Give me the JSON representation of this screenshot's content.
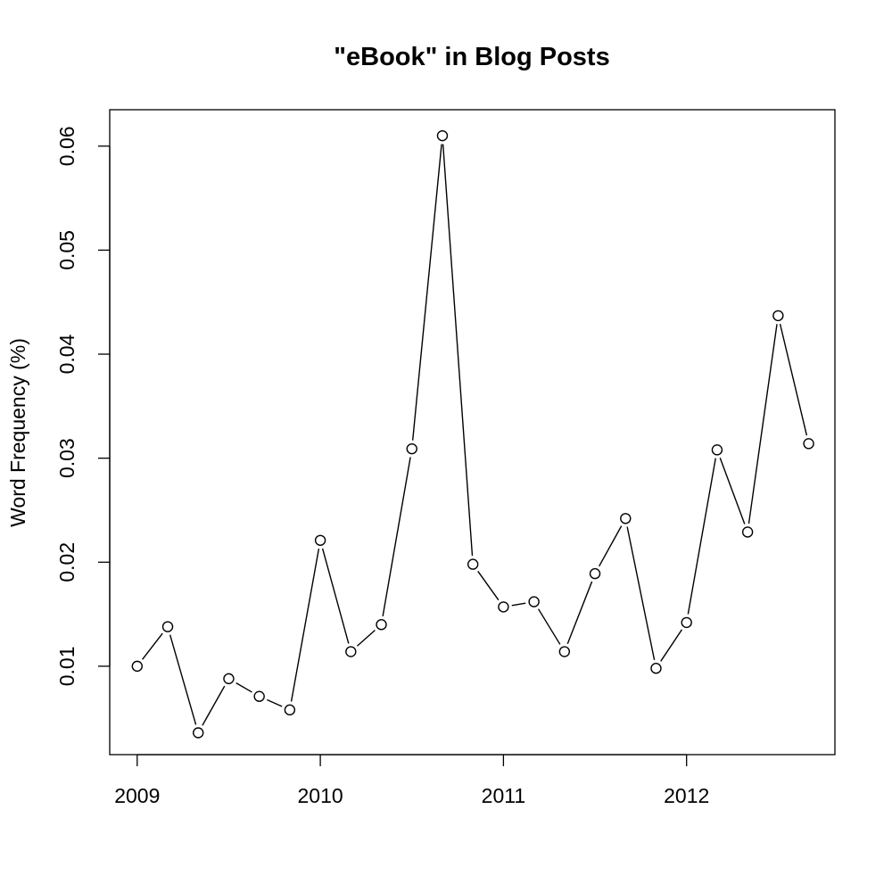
{
  "chart_data": {
    "type": "line",
    "title": "\"eBook\" in Blog Posts",
    "xlabel": "",
    "ylabel": "Word Frequency (%)",
    "xlim": [
      2008.85,
      2012.81
    ],
    "ylim": [
      0.0015,
      0.0635
    ],
    "x_ticks": [
      2009,
      2010,
      2011,
      2012
    ],
    "x_tick_labels": [
      "2009",
      "2010",
      "2011",
      "2012"
    ],
    "y_ticks": [
      0.01,
      0.02,
      0.03,
      0.04,
      0.05,
      0.06
    ],
    "y_tick_labels": [
      "0.01",
      "0.02",
      "0.03",
      "0.04",
      "0.05",
      "0.06"
    ],
    "grid": false,
    "series": [
      {
        "x": [
          2009.0,
          2009.1667,
          2009.3333,
          2009.5,
          2009.6667,
          2009.8333,
          2010.0,
          2010.1667,
          2010.3333,
          2010.5,
          2010.6667,
          2010.8333,
          2011.0,
          2011.1667,
          2011.3333,
          2011.5,
          2011.6667,
          2011.8333,
          2012.0,
          2012.1667,
          2012.3333,
          2012.5,
          2012.6667
        ],
        "y": [
          0.01,
          0.0138,
          0.0036,
          0.0088,
          0.0071,
          0.0058,
          0.0221,
          0.0114,
          0.014,
          0.0309,
          0.061,
          0.0198,
          0.0157,
          0.0162,
          0.0114,
          0.0189,
          0.0242,
          0.0098,
          0.0142,
          0.0308,
          0.0229,
          0.0437,
          0.0314
        ],
        "color": "#000000",
        "marker": "open-circle"
      }
    ]
  }
}
